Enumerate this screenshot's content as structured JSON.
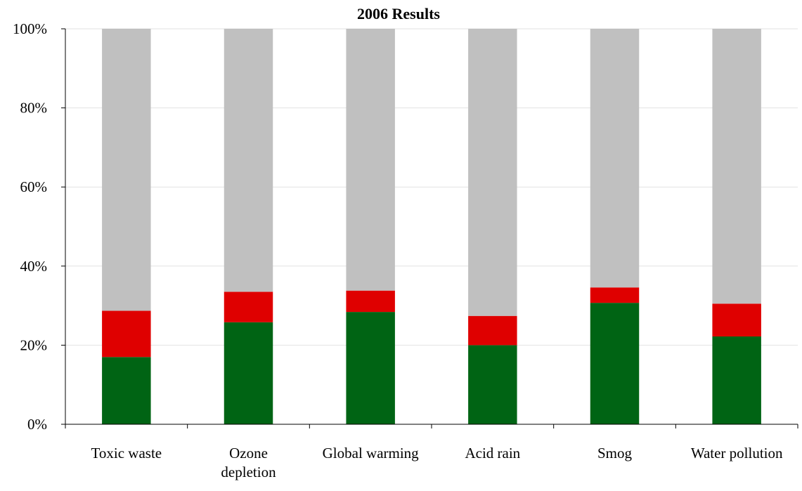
{
  "chart_data": {
    "type": "bar",
    "stacked": true,
    "normalized_percent": true,
    "title": "2006 Results",
    "xlabel": "",
    "ylabel": "",
    "ylim": [
      0,
      100
    ],
    "yticks": [
      "0%",
      "20%",
      "40%",
      "60%",
      "80%",
      "100%"
    ],
    "grid": true,
    "legend": "none",
    "categories": [
      "Toxic waste",
      "Ozone depletion",
      "Global warming",
      "Acid rain",
      "Smog",
      "Water pollution"
    ],
    "category_label_lines": [
      [
        "Toxic waste"
      ],
      [
        "Ozone",
        "depletion"
      ],
      [
        "Global warming"
      ],
      [
        "Acid rain"
      ],
      [
        "Smog"
      ],
      [
        "Water pollution"
      ]
    ],
    "series": [
      {
        "color": "#006414",
        "values": [
          17,
          25.8,
          28.4,
          20,
          30.7,
          22.2
        ]
      },
      {
        "color": "#df0000",
        "values": [
          11.7,
          7.7,
          5.4,
          7.4,
          3.9,
          8.3
        ]
      },
      {
        "color": "#c0c0c0",
        "values": [
          71.3,
          66.5,
          66.2,
          72.6,
          65.4,
          69.5
        ]
      }
    ]
  }
}
